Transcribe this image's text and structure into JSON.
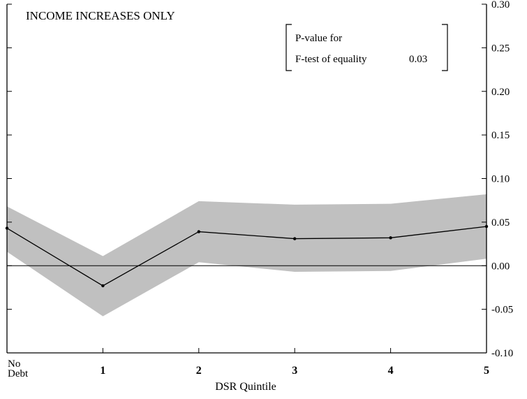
{
  "chart_data": {
    "type": "line",
    "title": "INCOME INCREASES ONLY",
    "xlabel": "DSR Quintile",
    "ylabel": "",
    "x_tick_labels": [
      [
        "No",
        "Debt"
      ],
      [
        "1"
      ],
      [
        "2"
      ],
      [
        "3"
      ],
      [
        "4"
      ],
      [
        "5"
      ]
    ],
    "categories": [
      "No Debt",
      "1",
      "2",
      "3",
      "4",
      "5"
    ],
    "ylim": [
      -0.1,
      0.3
    ],
    "y_ticks": [
      -0.1,
      -0.05,
      0.0,
      0.05,
      0.1,
      0.15,
      0.2,
      0.25,
      0.3
    ],
    "y_tick_labels": [
      "-0.10",
      "-0.05",
      "0.00",
      "0.05",
      "0.10",
      "0.15",
      "0.20",
      "0.25",
      "0.30"
    ],
    "y_axis_side": "right",
    "series": [
      {
        "values": [
          0.043,
          -0.023,
          0.039,
          0.031,
          0.032,
          0.045
        ],
        "lower": [
          0.016,
          -0.058,
          0.004,
          -0.007,
          -0.006,
          0.008
        ],
        "upper": [
          0.068,
          0.011,
          0.074,
          0.07,
          0.071,
          0.082
        ],
        "color": "#000000",
        "band_color": "#c0c0c0"
      }
    ],
    "reference_line": 0.0,
    "annotation": {
      "line1": "P-value for",
      "line2": "F-test of equality",
      "value": "0.03"
    },
    "grid": false
  }
}
